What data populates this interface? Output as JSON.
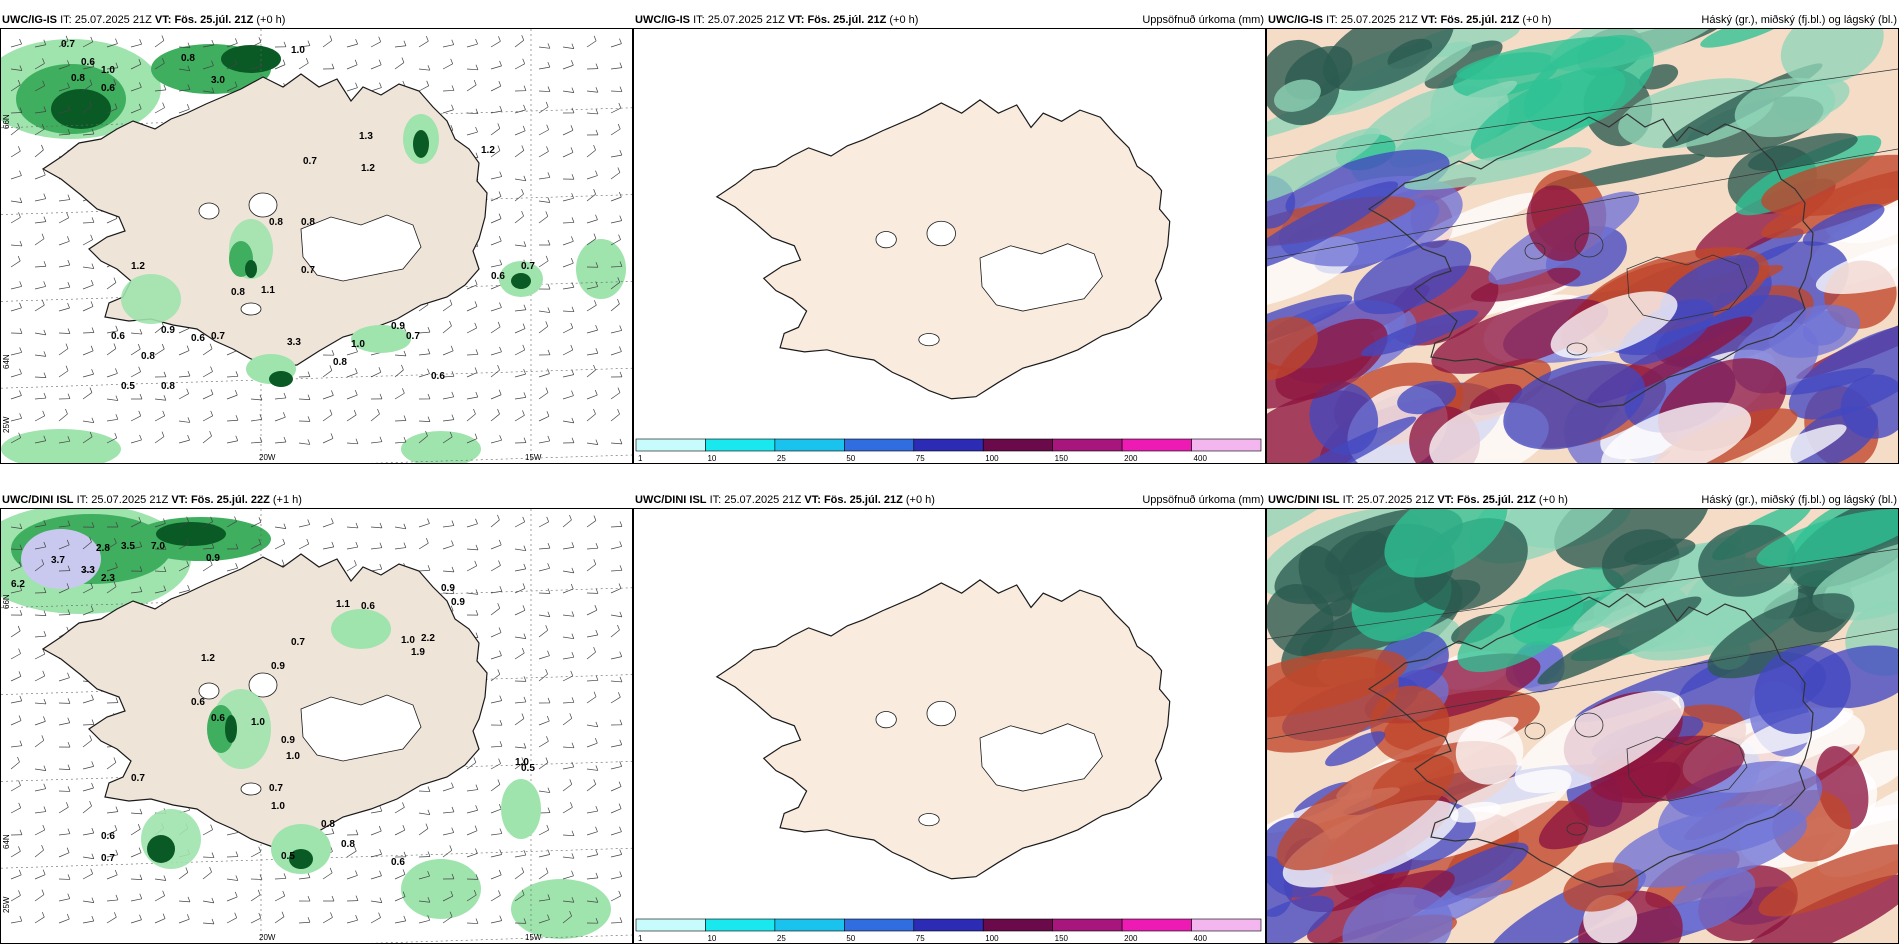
{
  "panels": [
    {
      "model": "UWC/IG-IS",
      "it_label": "IT:",
      "it": "25.07.2025 21Z",
      "vt_label": "VT:",
      "vt": "Fös. 25.júl. 21Z",
      "lead": "(+0 h)",
      "right": ""
    },
    {
      "model": "UWC/IG-IS",
      "it_label": "IT:",
      "it": "25.07.2025 21Z",
      "vt_label": "VT:",
      "vt": "Fös. 25.júl. 21Z",
      "lead": "(+0 h)",
      "right": "Uppsöfnuð úrkoma (mm)"
    },
    {
      "model": "UWC/IG-IS",
      "it_label": "IT:",
      "it": "25.07.2025 21Z",
      "vt_label": "VT:",
      "vt": "Fös. 25.júl. 21Z",
      "lead": "(+0 h)",
      "right": "Háský (gr.), miðský (fj.bl.) og lágský (bl.)"
    },
    {
      "model": "UWC/DINI ISL",
      "it_label": "IT:",
      "it": "25.07.2025 21Z",
      "vt_label": "VT:",
      "vt": "Fös. 25.júl. 22Z",
      "lead": "(+1 h)",
      "right": ""
    },
    {
      "model": "UWC/DINI ISL",
      "it_label": "IT:",
      "it": "25.07.2025 21Z",
      "vt_label": "VT:",
      "vt": "Fös. 25.júl. 21Z",
      "lead": "(+0 h)",
      "right": "Uppsöfnuð úrkoma (mm)"
    },
    {
      "model": "UWC/DINI ISL",
      "it_label": "IT:",
      "it": "25.07.2025 21Z",
      "vt_label": "VT:",
      "vt": "Fös. 25.júl. 21Z",
      "lead": "(+0 h)",
      "right": "Háský (gr.), miðský (fj.bl.) og lágský (bl.)"
    }
  ],
  "axis_labels": {
    "lon1": "20W",
    "lon2": "15W",
    "lat1": "66N",
    "lat2": "64N",
    "lon0": "25W"
  },
  "colorbar": {
    "ticks": [
      "1",
      "10",
      "25",
      "50",
      "75",
      "100",
      "150",
      "200",
      "400"
    ],
    "colors": [
      "#c8fbfb",
      "#19e8ee",
      "#19c3ee",
      "#2f6de0",
      "#2b2bb5",
      "#6b0a4a",
      "#a8157c",
      "#ee1ab4",
      "#f3b6ef"
    ]
  },
  "precip_labels_top": [
    "0.7",
    "0.6",
    "1.0",
    "0.8",
    "0.6",
    "0.8",
    "3.0",
    "1.0",
    "1.2",
    "1.3",
    "0.7",
    "1.2",
    "0.8",
    "0.8",
    "0.7",
    "0.6",
    "1.2",
    "0.9",
    "0.8",
    "1.1",
    "3.3",
    "1.0",
    "0.7",
    "0.6",
    "0.5",
    "0.6",
    "0.8",
    "0.8",
    "0.9",
    "0.7",
    "0.8",
    "0.7",
    "0.6"
  ],
  "precip_labels_bottom": [
    "2.8",
    "3.5",
    "7.0",
    "3.7",
    "3.3",
    "2.3",
    "6.2",
    "0.9",
    "1.1",
    "0.9",
    "1.0",
    "0.6",
    "0.9",
    "2.2",
    "1.9",
    "0.7",
    "0.9",
    "1.2",
    "0.6",
    "0.6",
    "1.0",
    "0.9",
    "1.0",
    "0.7",
    "1.0",
    "0.7",
    "0.7",
    "0.8",
    "0.8",
    "0.6",
    "0.5",
    "1.0",
    "0.5",
    "0.9",
    "0.7",
    "0.6"
  ],
  "colors": {
    "land": "#efe4d8",
    "land_precip": "#f9ecdf",
    "coast": "#1a1a1a",
    "precip_light": "#9fe3ad",
    "precip_mid": "#3fae5e",
    "precip_dark": "#0a5a25",
    "cloud_high": "#2a5a4f",
    "cloud_mid": "#4348c0",
    "cloud_low": "#8d1540"
  }
}
